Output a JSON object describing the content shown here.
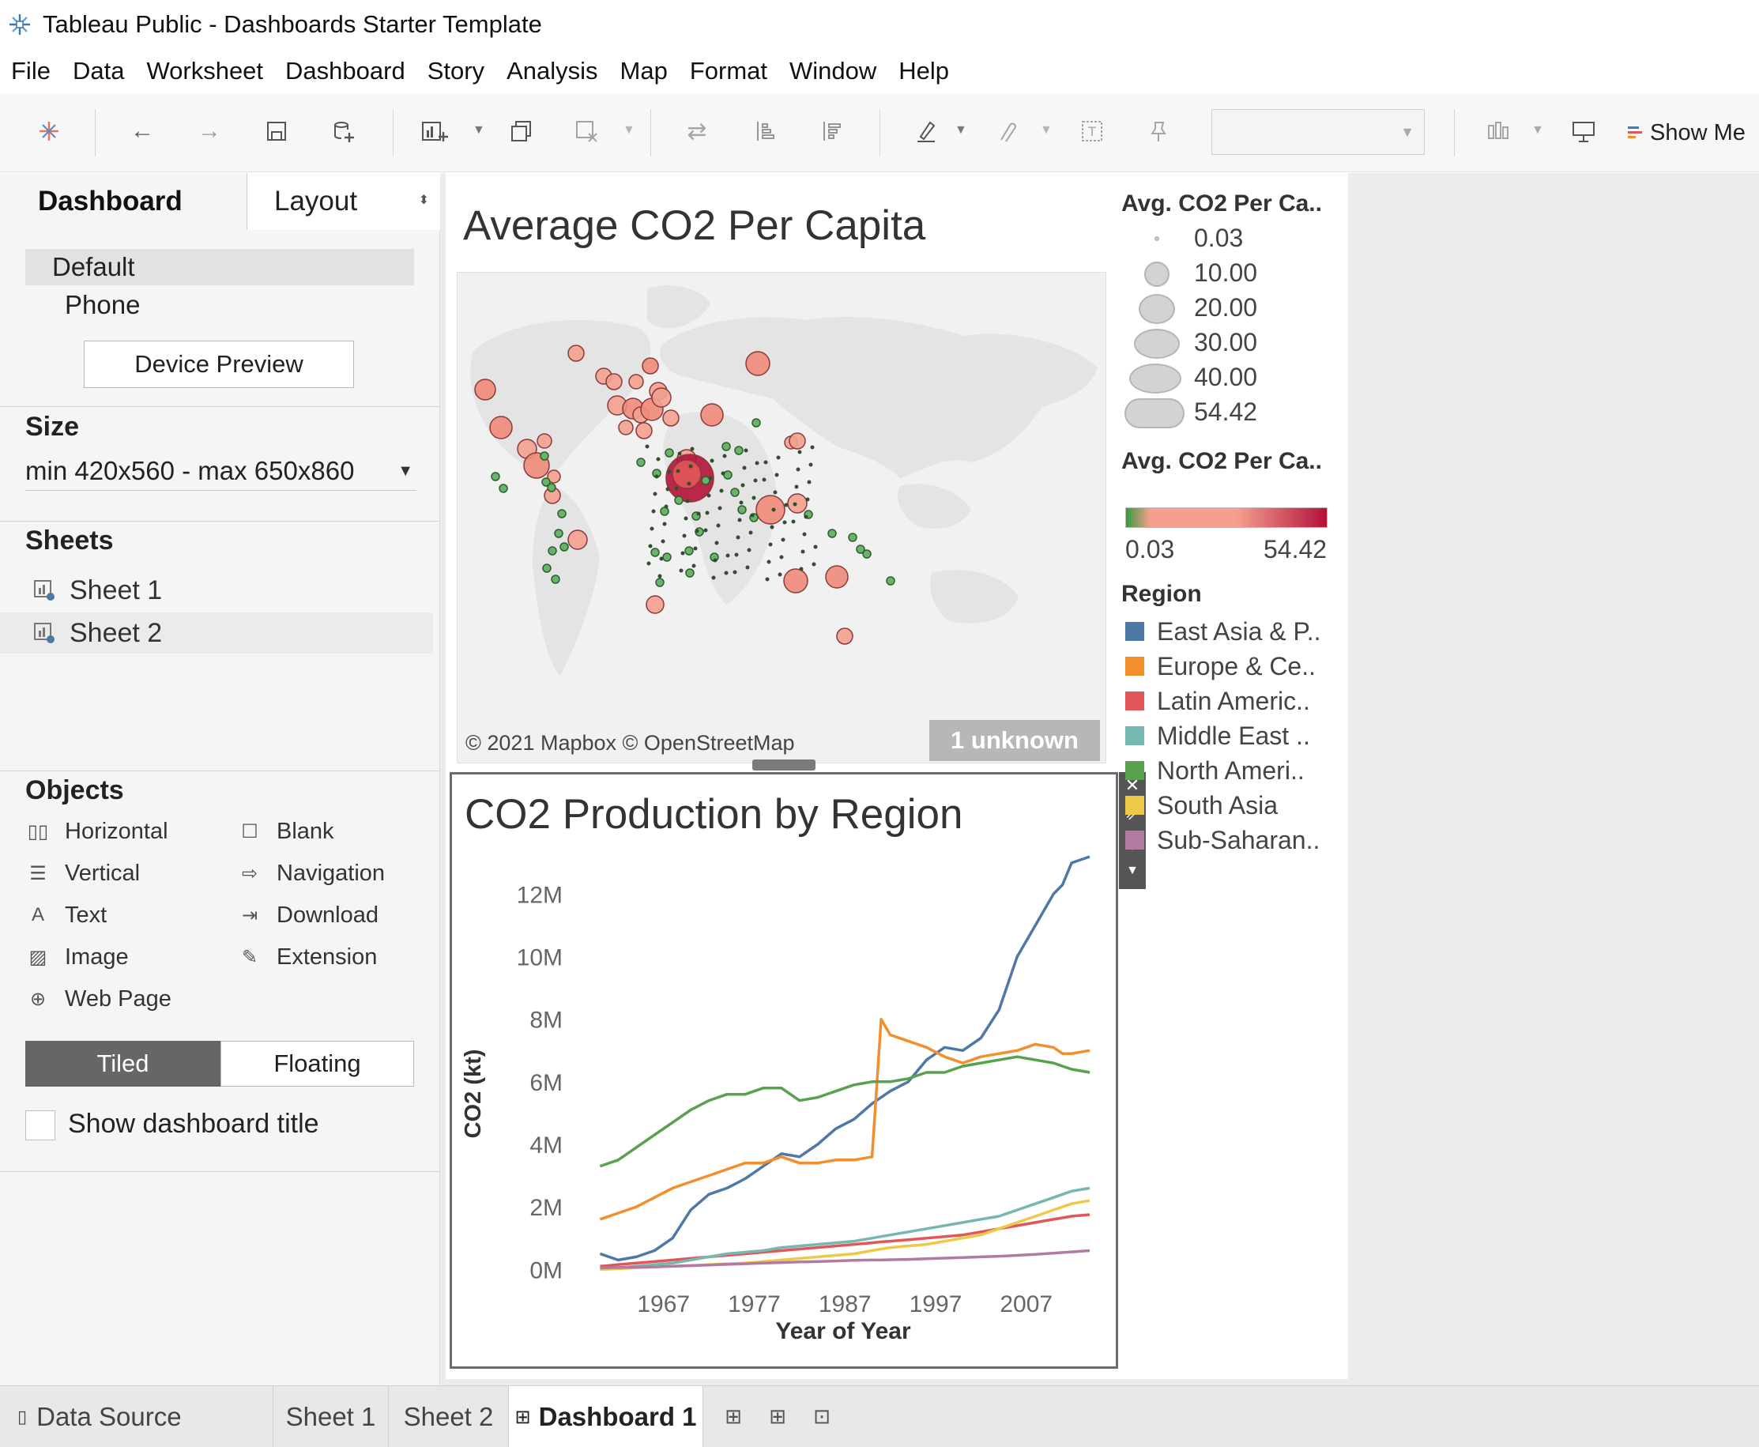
{
  "window": {
    "title": "Tableau Public - Dashboards Starter Template"
  },
  "menu": [
    "File",
    "Data",
    "Worksheet",
    "Dashboard",
    "Story",
    "Analysis",
    "Map",
    "Format",
    "Window",
    "Help"
  ],
  "toolbar": {
    "show_me_label": "Show Me"
  },
  "left_panel": {
    "tab_dashboard": "Dashboard",
    "tab_layout": "Layout",
    "devices": [
      "Default",
      "Phone"
    ],
    "device_preview": "Device Preview",
    "size_heading": "Size",
    "size_value": "min 420x560 - max 650x860",
    "sheets_heading": "Sheets",
    "sheets": [
      "Sheet 1",
      "Sheet 2"
    ],
    "objects_heading": "Objects",
    "objects": [
      "Horizontal",
      "Blank",
      "Vertical",
      "Navigation",
      "Text",
      "Download",
      "Image",
      "Extension",
      "Web Page"
    ],
    "tiled": "Tiled",
    "floating": "Floating",
    "show_dashboard_title": "Show dashboard title"
  },
  "map": {
    "title": "Average CO2 Per Capita",
    "credit": "© 2021 Mapbox © OpenStreetMap",
    "unknown_badge": "1 unknown"
  },
  "legend": {
    "size_title": "Avg. CO2 Per Ca..",
    "size_values": [
      "0.03",
      "10.00",
      "20.00",
      "30.00",
      "40.00",
      "54.42"
    ],
    "color_title": "Avg. CO2 Per Ca..",
    "color_min": "0.03",
    "color_max": "54.42",
    "color_low": "#3a9a3e",
    "color_mid": "#f3a08e",
    "color_high": "#b4123a",
    "region_title": "Region",
    "regions": [
      {
        "name": "East Asia & P..",
        "color": "#4e79a7"
      },
      {
        "name": "Europe & Ce..",
        "color": "#f28e2b"
      },
      {
        "name": "Latin Americ..",
        "color": "#e15759"
      },
      {
        "name": "Middle East ..",
        "color": "#76b7b2"
      },
      {
        "name": "North Ameri..",
        "color": "#59a14f"
      },
      {
        "name": "South Asia",
        "color": "#edc948"
      },
      {
        "name": "Sub-Saharan..",
        "color": "#b07aa1"
      }
    ]
  },
  "chart_data": {
    "type": "line",
    "title": "CO2 Production by Region",
    "xlabel": "Year of Year",
    "ylabel": "CO2 (kt)",
    "x": [
      1960,
      1962,
      1964,
      1966,
      1968,
      1970,
      1972,
      1974,
      1976,
      1978,
      1980,
      1982,
      1984,
      1986,
      1988,
      1990,
      1991,
      1992,
      1994,
      1996,
      1998,
      2000,
      2002,
      2004,
      2006,
      2008,
      2010,
      2011,
      2012,
      2014
    ],
    "x_ticks": [
      "1967",
      "1977",
      "1987",
      "1997",
      "2007"
    ],
    "x_tick_values": [
      1967,
      1977,
      1987,
      1997,
      2007
    ],
    "y_ticks": [
      "0M",
      "2M",
      "4M",
      "6M",
      "8M",
      "10M",
      "12M"
    ],
    "y_tick_values": [
      0,
      2000000,
      4000000,
      6000000,
      8000000,
      10000000,
      12000000
    ],
    "xlim": [
      1955,
      2016
    ],
    "ylim": [
      -600000,
      13300000
    ],
    "series": [
      {
        "name": "East Asia & P..",
        "color": "#4e79a7",
        "values": [
          500000,
          300000,
          400000,
          600000,
          1000000,
          1900000,
          2400000,
          2600000,
          2900000,
          3300000,
          3700000,
          3600000,
          4000000,
          4500000,
          4800000,
          5300000,
          5500000,
          5700000,
          6000000,
          6700000,
          7100000,
          7000000,
          7400000,
          8300000,
          10000000,
          11000000,
          12000000,
          12300000,
          13000000,
          13200000
        ]
      },
      {
        "name": "Europe & Ce..",
        "color": "#f28e2b",
        "values": [
          1600000,
          1800000,
          2000000,
          2300000,
          2600000,
          2800000,
          3000000,
          3200000,
          3400000,
          3400000,
          3600000,
          3400000,
          3400000,
          3500000,
          3500000,
          3600000,
          8000000,
          7500000,
          7300000,
          7100000,
          6800000,
          6600000,
          6800000,
          6900000,
          7000000,
          7200000,
          7100000,
          6900000,
          6900000,
          7000000
        ]
      },
      {
        "name": "Latin Americ..",
        "color": "#e15759",
        "values": [
          100000,
          150000,
          200000,
          250000,
          300000,
          350000,
          400000,
          450000,
          500000,
          550000,
          600000,
          650000,
          700000,
          750000,
          800000,
          850000,
          880000,
          900000,
          950000,
          1000000,
          1050000,
          1100000,
          1200000,
          1300000,
          1400000,
          1500000,
          1600000,
          1650000,
          1700000,
          1750000
        ]
      },
      {
        "name": "Middle East ..",
        "color": "#76b7b2",
        "values": [
          0,
          50000,
          100000,
          150000,
          200000,
          300000,
          400000,
          500000,
          550000,
          600000,
          700000,
          750000,
          800000,
          850000,
          900000,
          1000000,
          1050000,
          1100000,
          1200000,
          1300000,
          1400000,
          1500000,
          1600000,
          1700000,
          1900000,
          2100000,
          2300000,
          2400000,
          2500000,
          2600000
        ]
      },
      {
        "name": "North Ameri..",
        "color": "#59a14f",
        "values": [
          3300000,
          3500000,
          3900000,
          4300000,
          4700000,
          5100000,
          5400000,
          5600000,
          5600000,
          5800000,
          5800000,
          5400000,
          5500000,
          5700000,
          5900000,
          6000000,
          6000000,
          6000000,
          6100000,
          6300000,
          6300000,
          6500000,
          6600000,
          6700000,
          6800000,
          6700000,
          6600000,
          6500000,
          6400000,
          6300000
        ]
      },
      {
        "name": "South Asia",
        "color": "#edc948",
        "values": [
          0,
          20000,
          50000,
          80000,
          100000,
          120000,
          150000,
          180000,
          200000,
          250000,
          300000,
          350000,
          400000,
          450000,
          500000,
          600000,
          650000,
          700000,
          750000,
          800000,
          900000,
          1000000,
          1100000,
          1300000,
          1500000,
          1700000,
          1900000,
          2000000,
          2100000,
          2200000
        ]
      },
      {
        "name": "Sub-Saharan..",
        "color": "#b07aa1",
        "values": [
          50000,
          60000,
          70000,
          80000,
          100000,
          120000,
          140000,
          160000,
          180000,
          200000,
          220000,
          240000,
          250000,
          270000,
          290000,
          300000,
          300000,
          310000,
          320000,
          340000,
          360000,
          380000,
          400000,
          420000,
          450000,
          480000,
          520000,
          540000,
          560000,
          600000
        ]
      }
    ]
  },
  "bottom_tabs": {
    "data_source": "Data Source",
    "sheet1": "Sheet 1",
    "sheet2": "Sheet 2",
    "dashboard1": "Dashboard 1"
  }
}
